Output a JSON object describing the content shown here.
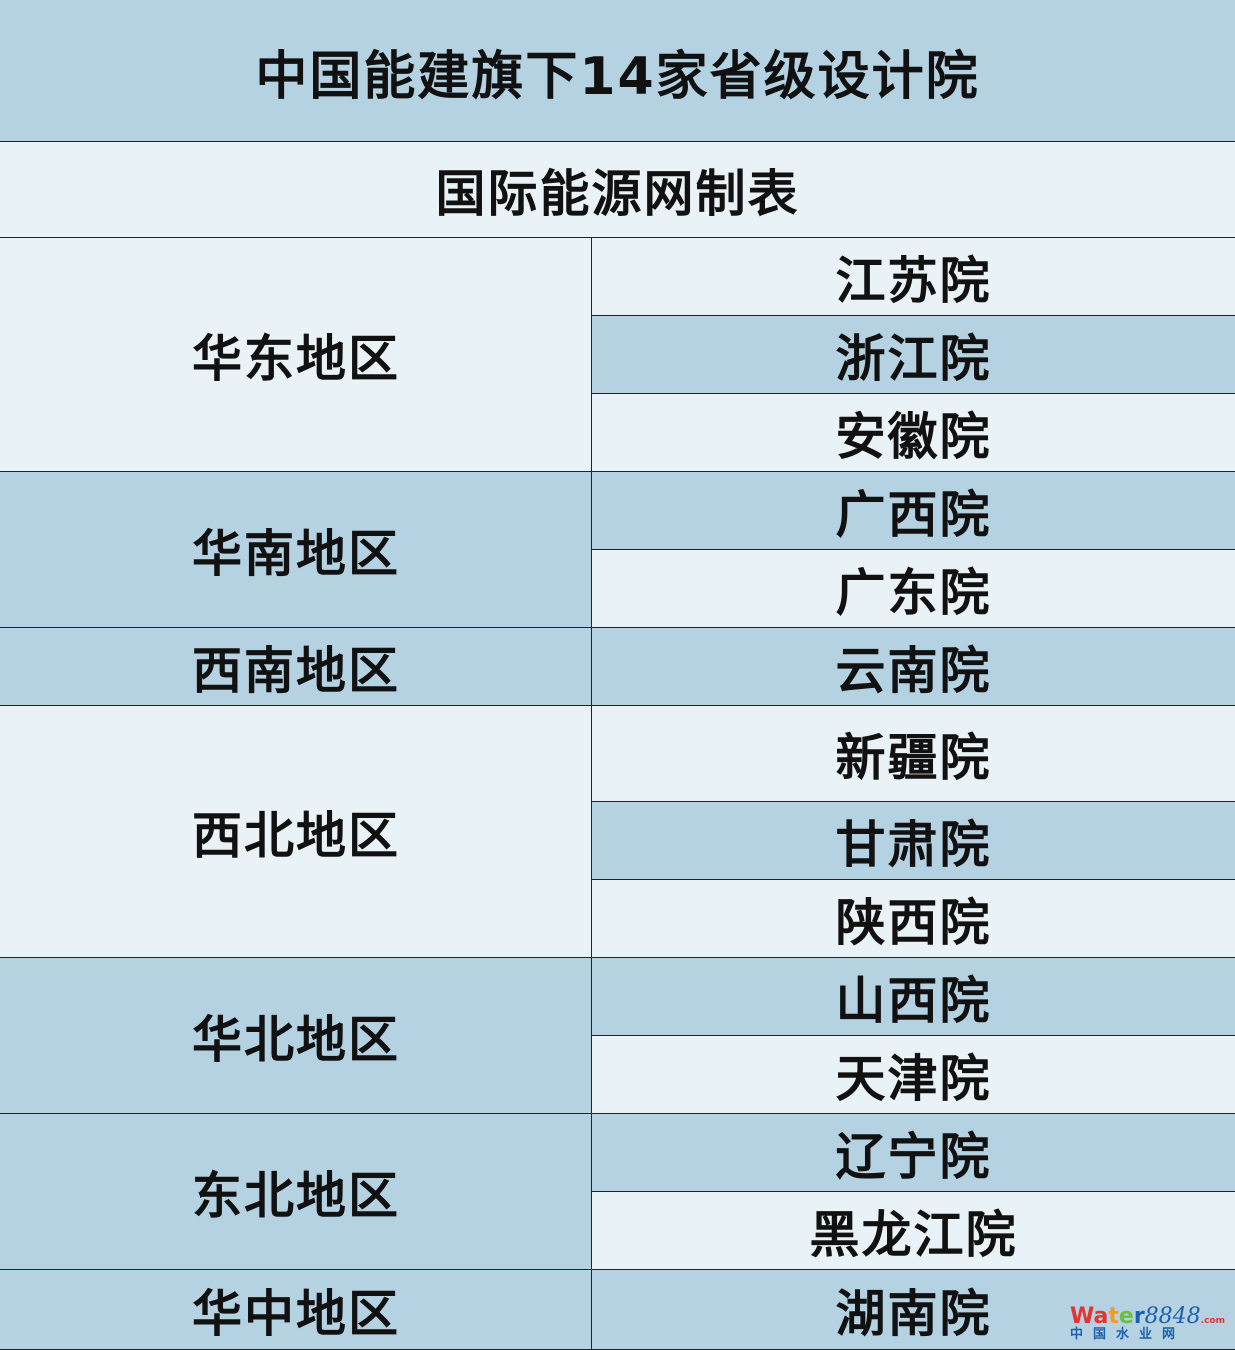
{
  "title": "中国能建旗下14家省级设计院",
  "subtitle": "国际能源网制表",
  "regions": [
    "华东地区",
    "华南地区",
    "西南地区",
    "西北地区",
    "华北地区",
    "东北地区",
    "华中地区"
  ],
  "institutes": [
    "江苏院",
    "浙江院",
    "安徽院",
    "广西院",
    "广东院",
    "云南院",
    "新疆院",
    "甘肃院",
    "陕西院",
    "山西院",
    "天津院",
    "辽宁院",
    "黑龙江院",
    "湖南院"
  ],
  "colors": {
    "dark": "#b4d2e2",
    "light": "#e9f2f6"
  },
  "watermark": {
    "brand": "Water8848",
    "suffix": ".com",
    "sub": "中国水业网"
  }
}
